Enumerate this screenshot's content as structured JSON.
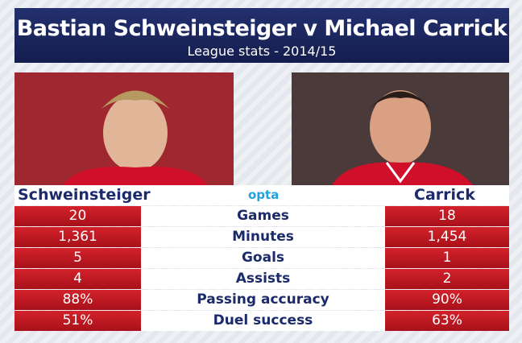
{
  "header": {
    "title": "Bastian Schweinsteiger v Michael Carrick",
    "subtitle": "League stats - 2014/15"
  },
  "players": {
    "left": "Schweinsteiger",
    "right": "Carrick"
  },
  "logo": "opta",
  "table": {
    "rows": [
      [
        "20",
        "Games",
        "18"
      ],
      [
        "1,361",
        "Minutes",
        "1,454"
      ],
      [
        "5",
        "Goals",
        "1"
      ],
      [
        "4",
        "Assists",
        "2"
      ],
      [
        "88%",
        "Passing accuracy",
        "90%"
      ],
      [
        "51%",
        "Duel success",
        "63%"
      ]
    ]
  }
}
